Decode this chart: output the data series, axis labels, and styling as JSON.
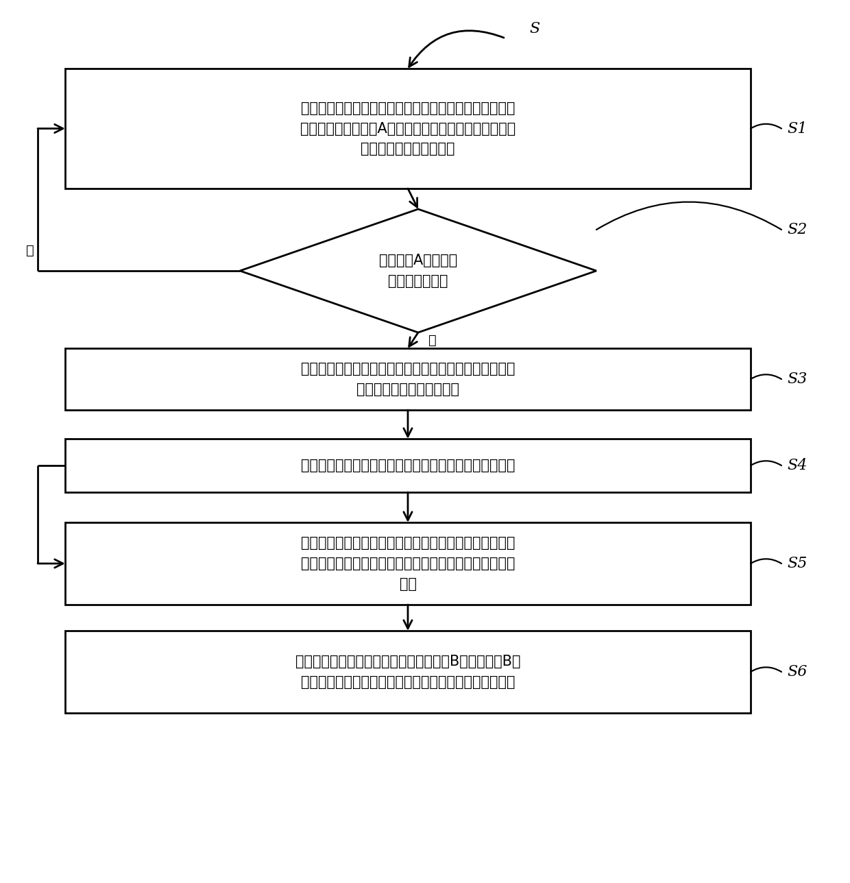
{
  "bg_color": "#ffffff",
  "box_color": "#ffffff",
  "box_edge_color": "#000000",
  "arrow_color": "#000000",
  "text_color": "#000000",
  "line_width": 2.0,
  "font_size_box": 15,
  "font_size_label": 14,
  "font_size_s": 16,
  "s1_text": "获取页岩气井当前的井口油压和管线回压，并计算管线回\n压与井口油压的比值A，基于气体的绝热指数计算气井井\n口当前的临界流动压力比",
  "s2_text": "判断比值A是否小于\n临界流动压力比",
  "s3_text": "按设定频率采集页岩气井的井口压力，并计算井口压力与\n初始井口压力之间的压力差",
  "s4_text": "根据压力差与压力下降边界的关系，调整油嘴阀门的开度",
  "s5_text": "在设定时间内按设定频率采集井口油压和管线回压，并计\n算设定时间内井口油压和管线回压的油压平均值和回压平\n均值",
  "s6_text": "计算油压平均值和回压平均值之间的比值B，根据比值B与\n临界流动压力比值边界之间的关系，调整油嘴阀门的开度",
  "yes_label": "是",
  "no_label": "否",
  "start_label": "S"
}
